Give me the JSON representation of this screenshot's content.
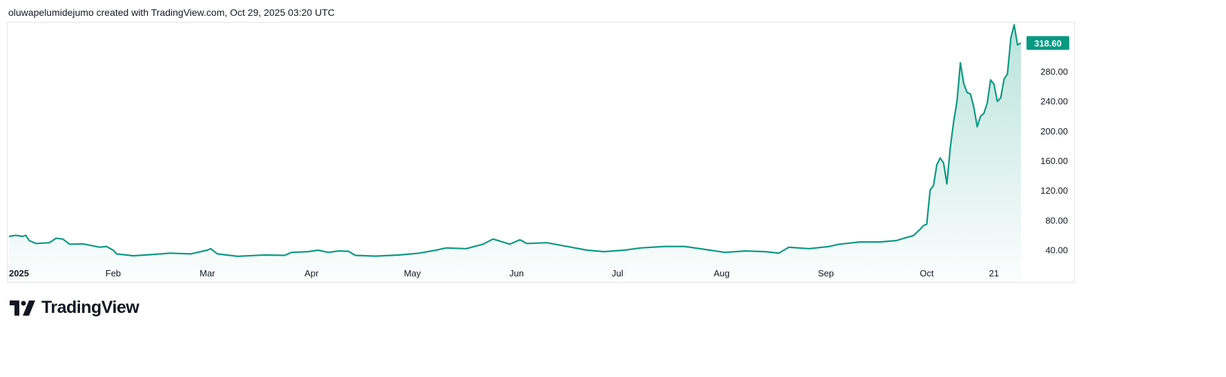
{
  "header": {
    "attribution": "oluwapelumidejumo created with TradingView.com, Oct 29, 2025 03:20 UTC"
  },
  "brand": {
    "name": "TradingView"
  },
  "colors": {
    "line": "#089981",
    "fill_top": "#089981",
    "label_bg": "#089981",
    "axis_text": "#131722",
    "border": "#e0e3eb"
  },
  "chart_data": {
    "type": "area",
    "title": "",
    "xlabel": "",
    "ylabel": "",
    "ylim": [
      -4.5,
      345.8
    ],
    "grid": false,
    "y_ticks": [
      40,
      80,
      120,
      160,
      200,
      240,
      280
    ],
    "y_tick_labels": [
      "40.00",
      "80.00",
      "120.00",
      "160.00",
      "200.00",
      "240.00",
      "280.00"
    ],
    "x_ticks": [
      {
        "label": "2025",
        "date": "2025-01-01"
      },
      {
        "label": "Feb",
        "date": "2025-02-01"
      },
      {
        "label": "Mar",
        "date": "2025-03-01"
      },
      {
        "label": "Apr",
        "date": "2025-04-01"
      },
      {
        "label": "May",
        "date": "2025-05-01"
      },
      {
        "label": "Jun",
        "date": "2025-06-01"
      },
      {
        "label": "Jul",
        "date": "2025-07-01"
      },
      {
        "label": "Aug",
        "date": "2025-08-01"
      },
      {
        "label": "Sep",
        "date": "2025-09-01"
      },
      {
        "label": "Oct",
        "date": "2025-10-01"
      },
      {
        "label": "21",
        "date": "2025-10-21"
      }
    ],
    "last_price_label": "318.60",
    "series": [
      {
        "points": [
          [
            "2025-01-01",
            58.5
          ],
          [
            "2025-01-03",
            60
          ],
          [
            "2025-01-05",
            58.5
          ],
          [
            "2025-01-06",
            60
          ],
          [
            "2025-01-07",
            53
          ],
          [
            "2025-01-09",
            49
          ],
          [
            "2025-01-13",
            50
          ],
          [
            "2025-01-15",
            56
          ],
          [
            "2025-01-17",
            55
          ],
          [
            "2025-01-19",
            48
          ],
          [
            "2025-01-23",
            48.5
          ],
          [
            "2025-01-28",
            44
          ],
          [
            "2025-01-30",
            45
          ],
          [
            "2025-02-01",
            40
          ],
          [
            "2025-02-02",
            35
          ],
          [
            "2025-02-07",
            32.5
          ],
          [
            "2025-02-12",
            34
          ],
          [
            "2025-02-18",
            36
          ],
          [
            "2025-02-24",
            35
          ],
          [
            "2025-03-01",
            40
          ],
          [
            "2025-03-02",
            42
          ],
          [
            "2025-03-04",
            35
          ],
          [
            "2025-03-10",
            31.7
          ],
          [
            "2025-03-18",
            33.5
          ],
          [
            "2025-03-24",
            33
          ],
          [
            "2025-03-26",
            37
          ],
          [
            "2025-03-31",
            38
          ],
          [
            "2025-04-03",
            40
          ],
          [
            "2025-04-06",
            37
          ],
          [
            "2025-04-09",
            39
          ],
          [
            "2025-04-12",
            38.5
          ],
          [
            "2025-04-14",
            33
          ],
          [
            "2025-04-20",
            32
          ],
          [
            "2025-04-27",
            33.5
          ],
          [
            "2025-05-03",
            36
          ],
          [
            "2025-05-08",
            40
          ],
          [
            "2025-05-11",
            43
          ],
          [
            "2025-05-17",
            42
          ],
          [
            "2025-05-22",
            48
          ],
          [
            "2025-05-25",
            55
          ],
          [
            "2025-05-30",
            48
          ],
          [
            "2025-06-02",
            54
          ],
          [
            "2025-06-04",
            49
          ],
          [
            "2025-06-10",
            50
          ],
          [
            "2025-06-16",
            45
          ],
          [
            "2025-06-22",
            40
          ],
          [
            "2025-06-27",
            38
          ],
          [
            "2025-07-03",
            40
          ],
          [
            "2025-07-08",
            43
          ],
          [
            "2025-07-15",
            45
          ],
          [
            "2025-07-21",
            45
          ],
          [
            "2025-07-27",
            41
          ],
          [
            "2025-08-02",
            37
          ],
          [
            "2025-08-08",
            39
          ],
          [
            "2025-08-14",
            38
          ],
          [
            "2025-08-18",
            36
          ],
          [
            "2025-08-21",
            44
          ],
          [
            "2025-08-27",
            42
          ],
          [
            "2025-09-02",
            45
          ],
          [
            "2025-09-05",
            48
          ],
          [
            "2025-09-11",
            51
          ],
          [
            "2025-09-17",
            51
          ],
          [
            "2025-09-22",
            53
          ],
          [
            "2025-09-25",
            57
          ],
          [
            "2025-09-27",
            59.5
          ],
          [
            "2025-09-29",
            68
          ],
          [
            "2025-09-30",
            73
          ],
          [
            "2025-10-01",
            75
          ],
          [
            "2025-10-02",
            121
          ],
          [
            "2025-10-03",
            127
          ],
          [
            "2025-10-04",
            155
          ],
          [
            "2025-10-05",
            164
          ],
          [
            "2025-10-06",
            157
          ],
          [
            "2025-10-07",
            129
          ],
          [
            "2025-10-08",
            178
          ],
          [
            "2025-10-09",
            213
          ],
          [
            "2025-10-10",
            240
          ],
          [
            "2025-10-11",
            292
          ],
          [
            "2025-10-12",
            264
          ],
          [
            "2025-10-13",
            252
          ],
          [
            "2025-10-14",
            250
          ],
          [
            "2025-10-15",
            232
          ],
          [
            "2025-10-16",
            206
          ],
          [
            "2025-10-17",
            220
          ],
          [
            "2025-10-18",
            224
          ],
          [
            "2025-10-19",
            238
          ],
          [
            "2025-10-20",
            269
          ],
          [
            "2025-10-21",
            263
          ],
          [
            "2025-10-22",
            240
          ],
          [
            "2025-10-23",
            245
          ],
          [
            "2025-10-24",
            270
          ],
          [
            "2025-10-25",
            277
          ],
          [
            "2025-10-26",
            325
          ],
          [
            "2025-10-27",
            343
          ],
          [
            "2025-10-28",
            316
          ],
          [
            "2025-10-29",
            318.6
          ]
        ]
      }
    ]
  }
}
